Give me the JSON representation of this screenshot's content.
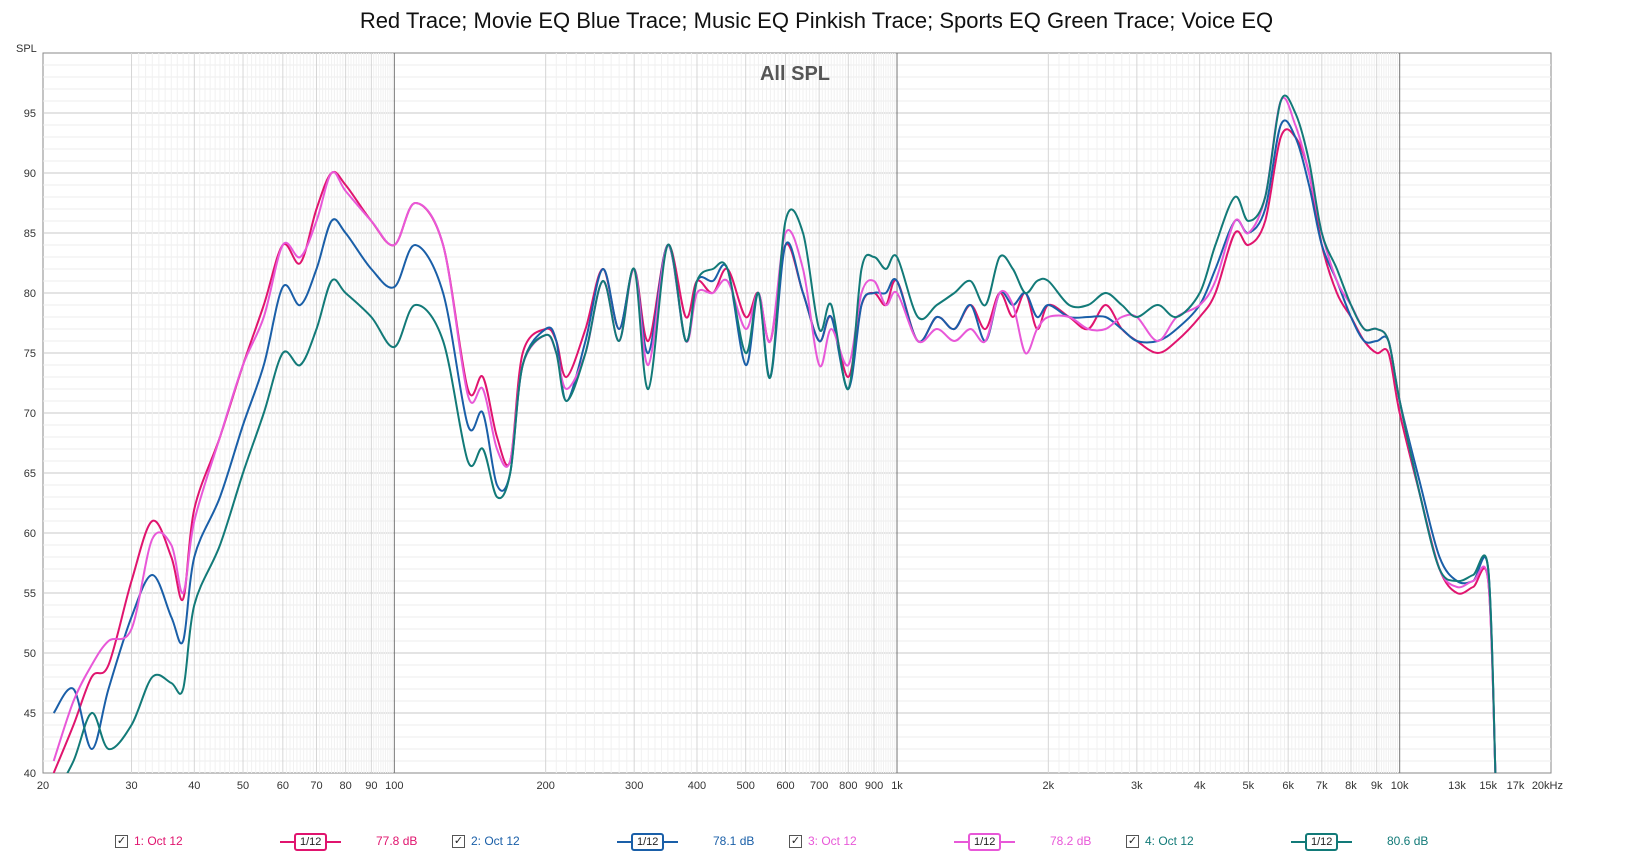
{
  "window": {
    "title": "Red Trace; Movie EQ Blue Trace; Music EQ Pinkish Trace; Sports EQ Green Trace; Voice EQ"
  },
  "chart_data": {
    "type": "line",
    "title": "All SPL",
    "ylabel": "SPL",
    "xlabel": "",
    "xscale": "log",
    "xlim": [
      20,
      20000
    ],
    "ylim": [
      40,
      100
    ],
    "grid": true,
    "y_ticks": [
      40,
      45,
      50,
      55,
      60,
      65,
      70,
      75,
      80,
      85,
      90,
      95
    ],
    "x_ticks": [
      {
        "value": 20,
        "label": "20"
      },
      {
        "value": 30,
        "label": "30"
      },
      {
        "value": 40,
        "label": "40"
      },
      {
        "value": 50,
        "label": "50"
      },
      {
        "value": 60,
        "label": "60"
      },
      {
        "value": 70,
        "label": "70"
      },
      {
        "value": 80,
        "label": "80"
      },
      {
        "value": 90,
        "label": "90"
      },
      {
        "value": 100,
        "label": "100"
      },
      {
        "value": 200,
        "label": "200"
      },
      {
        "value": 300,
        "label": "300"
      },
      {
        "value": 400,
        "label": "400"
      },
      {
        "value": 500,
        "label": "500"
      },
      {
        "value": 600,
        "label": "600"
      },
      {
        "value": 700,
        "label": "700"
      },
      {
        "value": 800,
        "label": "800"
      },
      {
        "value": 900,
        "label": "900"
      },
      {
        "value": 1000,
        "label": "1k"
      },
      {
        "value": 2000,
        "label": "2k"
      },
      {
        "value": 3000,
        "label": "3k"
      },
      {
        "value": 4000,
        "label": "4k"
      },
      {
        "value": 5000,
        "label": "5k"
      },
      {
        "value": 6000,
        "label": "6k"
      },
      {
        "value": 7000,
        "label": "7k"
      },
      {
        "value": 8000,
        "label": "8k"
      },
      {
        "value": 9000,
        "label": "9k"
      },
      {
        "value": 10000,
        "label": "10k"
      },
      {
        "value": 13000,
        "label": "13k"
      },
      {
        "value": 15000,
        "label": "15k"
      },
      {
        "value": 17000,
        "label": "17k"
      },
      {
        "value": 20000,
        "label": "20kHz"
      }
    ],
    "x": [
      21,
      23,
      25,
      27,
      30,
      33,
      36,
      38,
      40,
      45,
      50,
      55,
      60,
      65,
      70,
      75,
      80,
      90,
      100,
      110,
      125,
      140,
      150,
      160,
      170,
      180,
      200,
      210,
      220,
      240,
      260,
      280,
      300,
      320,
      350,
      380,
      400,
      430,
      460,
      500,
      530,
      560,
      600,
      650,
      700,
      740,
      800,
      850,
      900,
      950,
      1000,
      1100,
      1200,
      1300,
      1400,
      1500,
      1600,
      1700,
      1800,
      1900,
      2000,
      2200,
      2400,
      2600,
      2800,
      3000,
      3300,
      3600,
      4000,
      4300,
      4700,
      5000,
      5400,
      5800,
      6200,
      6600,
      7000,
      7500,
      8000,
      8500,
      9000,
      9500,
      10000,
      11000,
      12000,
      13000,
      14000,
      15000,
      15500
    ],
    "series": [
      {
        "name": "1: Oct 12",
        "color": "#e0146e",
        "smoothing": "1/12",
        "level": "77.8 dB",
        "values": [
          40,
          44,
          48,
          49,
          56,
          61,
          58,
          54.5,
          62,
          68,
          74,
          79,
          84,
          82.5,
          87,
          90,
          89,
          86,
          84,
          87.5,
          84,
          72,
          73,
          68,
          66,
          75,
          77,
          76,
          73,
          77,
          82,
          77,
          82,
          76,
          84,
          78,
          81,
          80,
          82,
          78,
          80,
          76,
          84,
          80,
          76,
          78,
          73,
          79,
          80,
          79,
          81,
          76,
          78,
          77,
          79,
          77,
          80,
          78,
          80,
          77,
          79,
          78,
          77,
          79,
          77,
          76,
          75,
          76,
          78,
          80,
          85,
          84,
          86,
          93,
          93,
          90,
          84,
          80,
          78,
          76,
          75,
          75,
          70,
          63,
          57,
          55,
          55.5,
          56,
          40
        ]
      },
      {
        "name": "2: Oct 12",
        "color": "#1a5fa8",
        "smoothing": "1/12",
        "level": "78.1 dB",
        "values": [
          45,
          47,
          42,
          47,
          53,
          56.5,
          53,
          51,
          58,
          63,
          69,
          74,
          80.5,
          79,
          82,
          86,
          85,
          82,
          80.5,
          84,
          80,
          69,
          70,
          64,
          65,
          74,
          77,
          76,
          71,
          76,
          82,
          77,
          82,
          75,
          84,
          76,
          81,
          81,
          82,
          74,
          80,
          73,
          84,
          80,
          76,
          78,
          72,
          79,
          80,
          80,
          81,
          76,
          78,
          77,
          79,
          76,
          80,
          79,
          80,
          78,
          79,
          78,
          78,
          78,
          77,
          76,
          76,
          77,
          79,
          82,
          86,
          85,
          87,
          94,
          93,
          89,
          84,
          81,
          78,
          76,
          76,
          76,
          71,
          64,
          58,
          56,
          56,
          57,
          40
        ]
      },
      {
        "name": "3: Oct 12",
        "color": "#e858d8",
        "smoothing": "1/12",
        "level": "78.2 dB",
        "values": [
          41,
          46,
          49,
          51,
          52,
          59.5,
          59,
          55,
          61,
          68,
          74,
          78,
          84,
          83,
          86,
          90,
          88.5,
          86,
          84,
          87.5,
          84,
          71.5,
          72,
          67,
          66,
          74,
          76.5,
          75,
          72,
          75,
          81,
          76,
          82,
          74,
          84,
          76,
          80,
          80,
          81,
          77,
          80,
          76,
          85,
          82,
          74,
          77,
          74,
          80,
          81,
          79,
          80,
          76,
          77,
          76,
          77,
          76,
          80,
          79,
          75,
          77,
          78,
          78,
          77,
          77,
          78,
          78,
          76,
          78,
          79,
          81,
          86,
          85,
          88,
          96,
          94,
          90,
          85,
          81,
          79,
          77,
          77,
          76,
          71,
          63,
          57,
          55.5,
          56,
          56,
          40
        ]
      },
      {
        "name": "4: Oct 12",
        "color": "#127a78",
        "smoothing": "1/12",
        "level": "80.6 dB",
        "values": [
          38,
          41,
          45,
          42,
          44,
          48,
          47.5,
          47,
          54,
          59,
          65,
          70,
          75,
          74,
          77,
          81,
          80,
          78,
          75.5,
          79,
          76,
          66,
          67,
          63,
          65,
          74,
          76.5,
          75,
          71,
          75,
          81,
          76,
          82,
          72,
          84,
          76,
          81,
          82,
          82,
          75,
          80,
          73,
          86,
          85,
          77,
          79,
          72,
          82,
          83,
          82,
          83,
          78,
          79,
          80,
          81,
          79,
          83,
          82,
          80,
          81,
          81,
          79,
          79,
          80,
          79,
          78,
          79,
          78,
          80,
          84,
          88,
          86,
          88,
          96,
          95,
          91,
          85,
          82,
          79,
          77,
          77,
          76,
          71,
          63,
          57,
          56,
          56.5,
          57,
          40
        ]
      }
    ]
  }
}
